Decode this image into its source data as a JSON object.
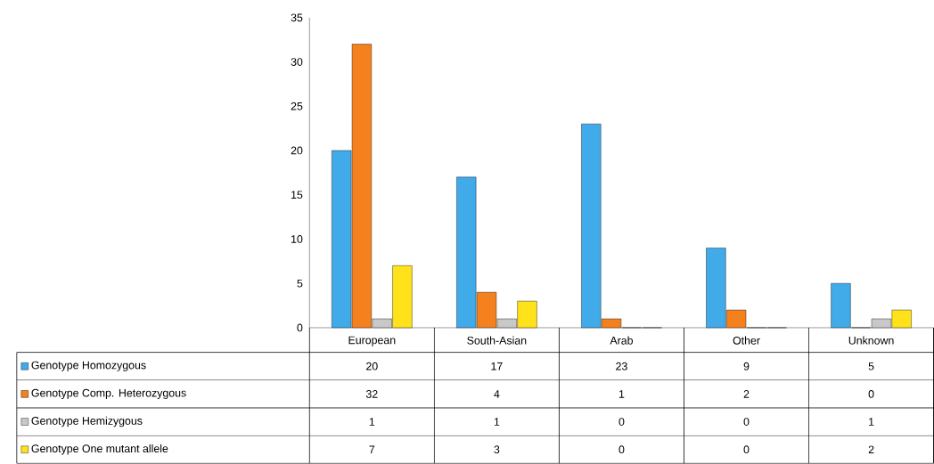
{
  "chart_data": {
    "type": "bar",
    "categories": [
      "European",
      "South-Asian",
      "Arab",
      "Other",
      "Unknown"
    ],
    "series": [
      {
        "name": "Genotype Homozygous",
        "color": "#41aae8",
        "values": [
          20,
          17,
          23,
          9,
          5
        ]
      },
      {
        "name": "Genotype Comp. Heterozygous",
        "color": "#f5801e",
        "values": [
          32,
          4,
          1,
          2,
          0
        ]
      },
      {
        "name": "Genotype Hemizygous",
        "color": "#c8c8c8",
        "values": [
          1,
          1,
          0,
          0,
          1
        ]
      },
      {
        "name": "Genotype One mutant allele",
        "color": "#ffe21a",
        "values": [
          7,
          3,
          0,
          0,
          2
        ]
      }
    ],
    "ylim": [
      0,
      35
    ],
    "yticks": [
      0,
      5,
      10,
      15,
      20,
      25,
      30,
      35
    ],
    "grid": false,
    "legend": "bottom",
    "data_labels": true
  }
}
